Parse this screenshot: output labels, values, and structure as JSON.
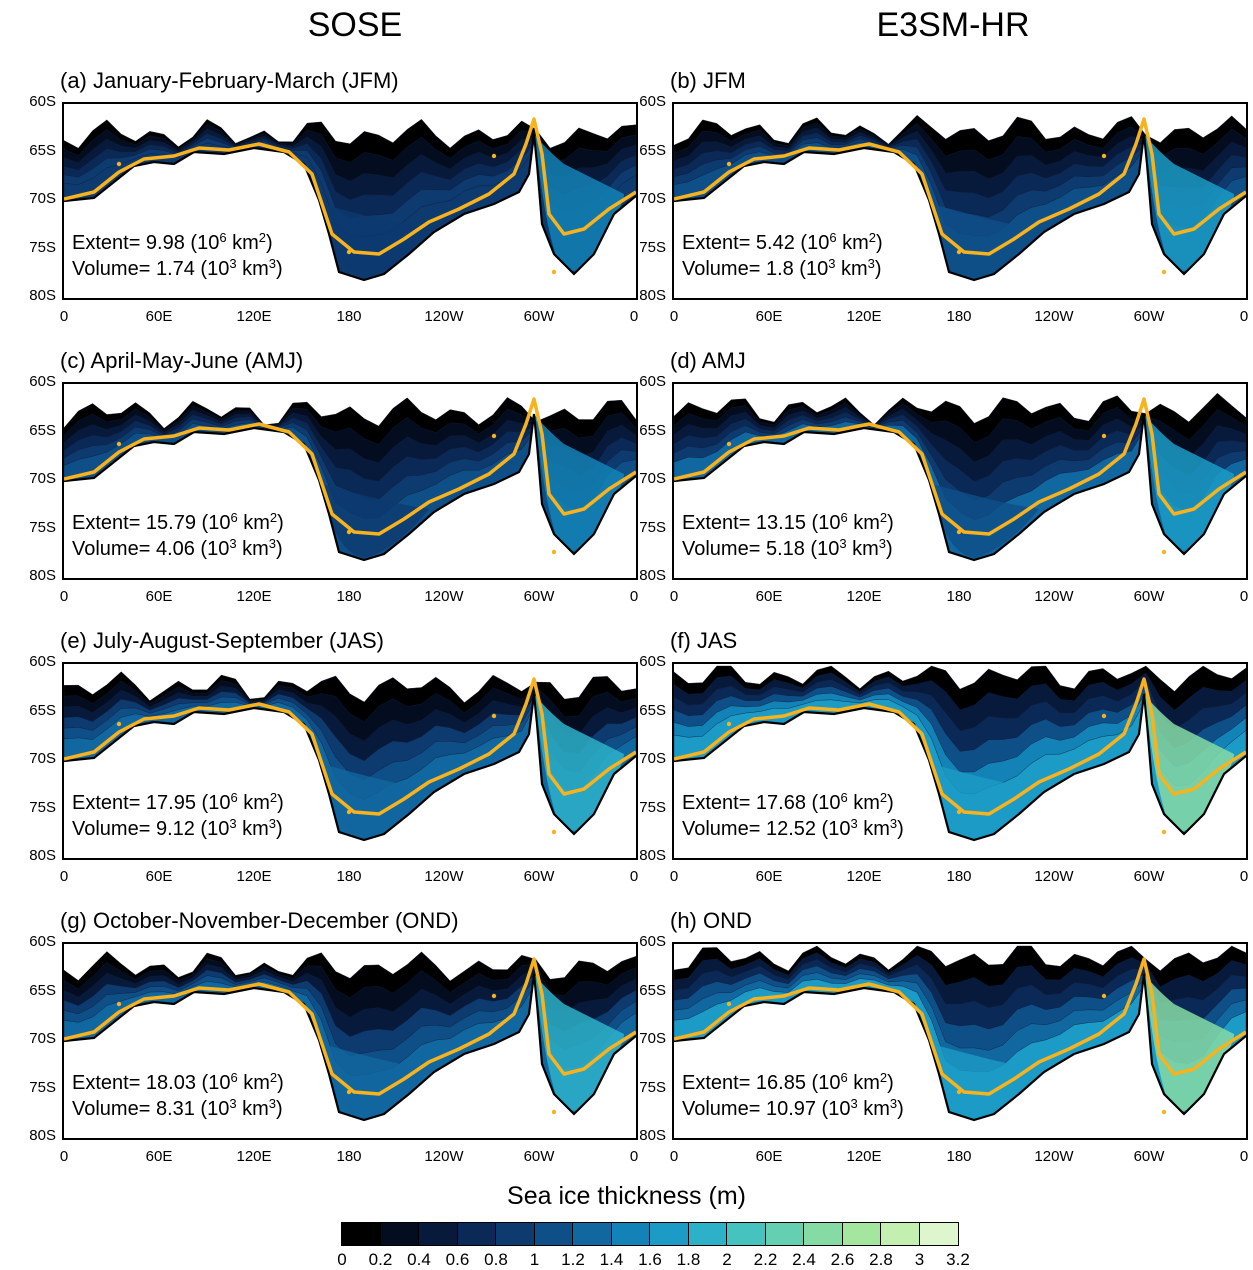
{
  "column_titles": [
    "SOSE",
    "E3SM-HR"
  ],
  "y_ticks": [
    "60S",
    "65S",
    "70S",
    "75S",
    "80S"
  ],
  "x_ticks": [
    "0",
    "60E",
    "120E",
    "180",
    "120W",
    "60W",
    "0"
  ],
  "colors": {
    "ice_edge": "#f7b21e",
    "coast": "#000000"
  },
  "panels": [
    {
      "title": "(a) January-February-March (JFM)",
      "extent": "9.98",
      "volume": "1.74",
      "ice_level": 0.25
    },
    {
      "title": "(b) JFM",
      "extent": "5.42",
      "volume": "1.8",
      "ice_level": 0.35
    },
    {
      "title": "(c) April-May-June (AMJ)",
      "extent": "15.79",
      "volume": "4.06",
      "ice_level": 0.3
    },
    {
      "title": "(d) AMJ",
      "extent": "13.15",
      "volume": "5.18",
      "ice_level": 0.4
    },
    {
      "title": "(e) July-August-September (JAS)",
      "extent": "17.95",
      "volume": "9.12",
      "ice_level": 0.45
    },
    {
      "title": "(f) JAS",
      "extent": "17.68",
      "volume": "12.52",
      "ice_level": 0.75
    },
    {
      "title": "(g) October-November-December (OND)",
      "extent": "18.03",
      "volume": "8.31",
      "ice_level": 0.45
    },
    {
      "title": "(h) OND",
      "extent": "16.85",
      "volume": "10.97",
      "ice_level": 0.7
    }
  ],
  "stat_text": {
    "extent_prefix": "Extent=",
    "extent_unit_open": "(10",
    "extent_exp": "6",
    "extent_unit_close": "km",
    "extent_unit_exp": "2",
    "volume_prefix": "Volume=",
    "volume_unit_open": "(10",
    "volume_exp": "3",
    "volume_unit_close": "km",
    "volume_unit_exp": "3",
    "paren_close": ")"
  },
  "colorbar": {
    "title": "Sea ice thickness (m)",
    "labels": [
      "0",
      "0.2",
      "0.4",
      "0.6",
      "0.8",
      "1",
      "1.2",
      "1.4",
      "1.6",
      "1.8",
      "2",
      "2.2",
      "2.4",
      "2.6",
      "2.8",
      "3",
      "3.2"
    ],
    "colors": [
      "#000000",
      "#040d1f",
      "#081a3b",
      "#0b2956",
      "#0d3a6f",
      "#0f4f88",
      "#11679f",
      "#1382b6",
      "#1b9bc6",
      "#2db1c9",
      "#46c2bf",
      "#64cfb1",
      "#86dba5",
      "#a4e69d",
      "#c3efb0",
      "#ddf6cd",
      "#eefbe6"
    ]
  },
  "chart_data": {
    "type": "heatmap",
    "title": "",
    "xlabel": "",
    "ylabel": "",
    "xlim": [
      "0",
      "0"
    ],
    "ylim": [
      "80S",
      "60S"
    ],
    "x_ticks": [
      "0",
      "60E",
      "120E",
      "180",
      "120W",
      "60W",
      "0"
    ],
    "y_ticks": [
      "60S",
      "65S",
      "70S",
      "75S",
      "80S"
    ],
    "colorbar_label": "Sea ice thickness (m)",
    "colorbar_levels": [
      0,
      0.2,
      0.4,
      0.6,
      0.8,
      1,
      1.2,
      1.4,
      1.6,
      1.8,
      2,
      2.2,
      2.4,
      2.6,
      2.8,
      3,
      3.2
    ],
    "series": [
      {
        "panel": "a",
        "column": "SOSE",
        "season": "JFM",
        "extent_1e6_km2": 9.98,
        "volume_1e3_km3": 1.74
      },
      {
        "panel": "b",
        "column": "E3SM-HR",
        "season": "JFM",
        "extent_1e6_km2": 5.42,
        "volume_1e3_km3": 1.8
      },
      {
        "panel": "c",
        "column": "SOSE",
        "season": "AMJ",
        "extent_1e6_km2": 15.79,
        "volume_1e3_km3": 4.06
      },
      {
        "panel": "d",
        "column": "E3SM-HR",
        "season": "AMJ",
        "extent_1e6_km2": 13.15,
        "volume_1e3_km3": 5.18
      },
      {
        "panel": "e",
        "column": "SOSE",
        "season": "JAS",
        "extent_1e6_km2": 17.95,
        "volume_1e3_km3": 9.12
      },
      {
        "panel": "f",
        "column": "E3SM-HR",
        "season": "JAS",
        "extent_1e6_km2": 17.68,
        "volume_1e3_km3": 12.52
      },
      {
        "panel": "g",
        "column": "SOSE",
        "season": "OND",
        "extent_1e6_km2": 18.03,
        "volume_1e3_km3": 8.31
      },
      {
        "panel": "h",
        "column": "E3SM-HR",
        "season": "OND",
        "extent_1e6_km2": 16.85,
        "volume_1e3_km3": 10.97
      }
    ]
  }
}
